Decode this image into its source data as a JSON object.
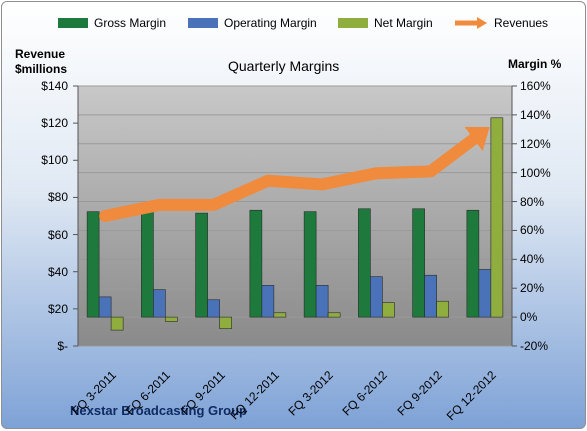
{
  "chart_data": {
    "type": "bar",
    "title": "Quarterly Margins",
    "source_label": "Nexstar Broadcasting Group",
    "left_axis": {
      "title_line1": "Revenue",
      "title_line2": "$millions",
      "ticks": [
        "$-",
        "$20",
        "$40",
        "$60",
        "$80",
        "$100",
        "$120",
        "$140"
      ],
      "range": [
        0,
        140
      ]
    },
    "right_axis": {
      "title": "Margin %",
      "ticks": [
        "-20%",
        "0%",
        "20%",
        "40%",
        "60%",
        "80%",
        "100%",
        "120%",
        "140%",
        "160%"
      ],
      "range": [
        -20,
        160
      ]
    },
    "categories": [
      "FQ 3-2011",
      "FQ 6-2011",
      "FQ 9-2011",
      "FQ 12-2011",
      "FQ 3-2012",
      "FQ 6-2012",
      "FQ 9-2012",
      "FQ 12-2012"
    ],
    "series": [
      {
        "name": "Gross Margin",
        "axis": "right",
        "kind": "bar",
        "color": "#1e7a3c",
        "values": [
          73,
          73,
          72,
          74,
          73,
          75,
          75,
          74
        ]
      },
      {
        "name": "Operating Margin",
        "axis": "right",
        "kind": "bar",
        "color": "#4a72b8",
        "values": [
          14,
          19,
          12,
          22,
          22,
          28,
          29,
          33
        ]
      },
      {
        "name": "Net Margin",
        "axis": "right",
        "kind": "bar",
        "color": "#8fae3e",
        "values": [
          -9,
          -3,
          -8,
          3,
          3,
          10,
          11,
          138
        ]
      },
      {
        "name": "Revenues",
        "axis": "left",
        "kind": "line",
        "color": "#f08a3c",
        "values": [
          70,
          76,
          76,
          89,
          87,
          93,
          94,
          116
        ]
      }
    ],
    "legend_position": "top",
    "grid": true
  }
}
